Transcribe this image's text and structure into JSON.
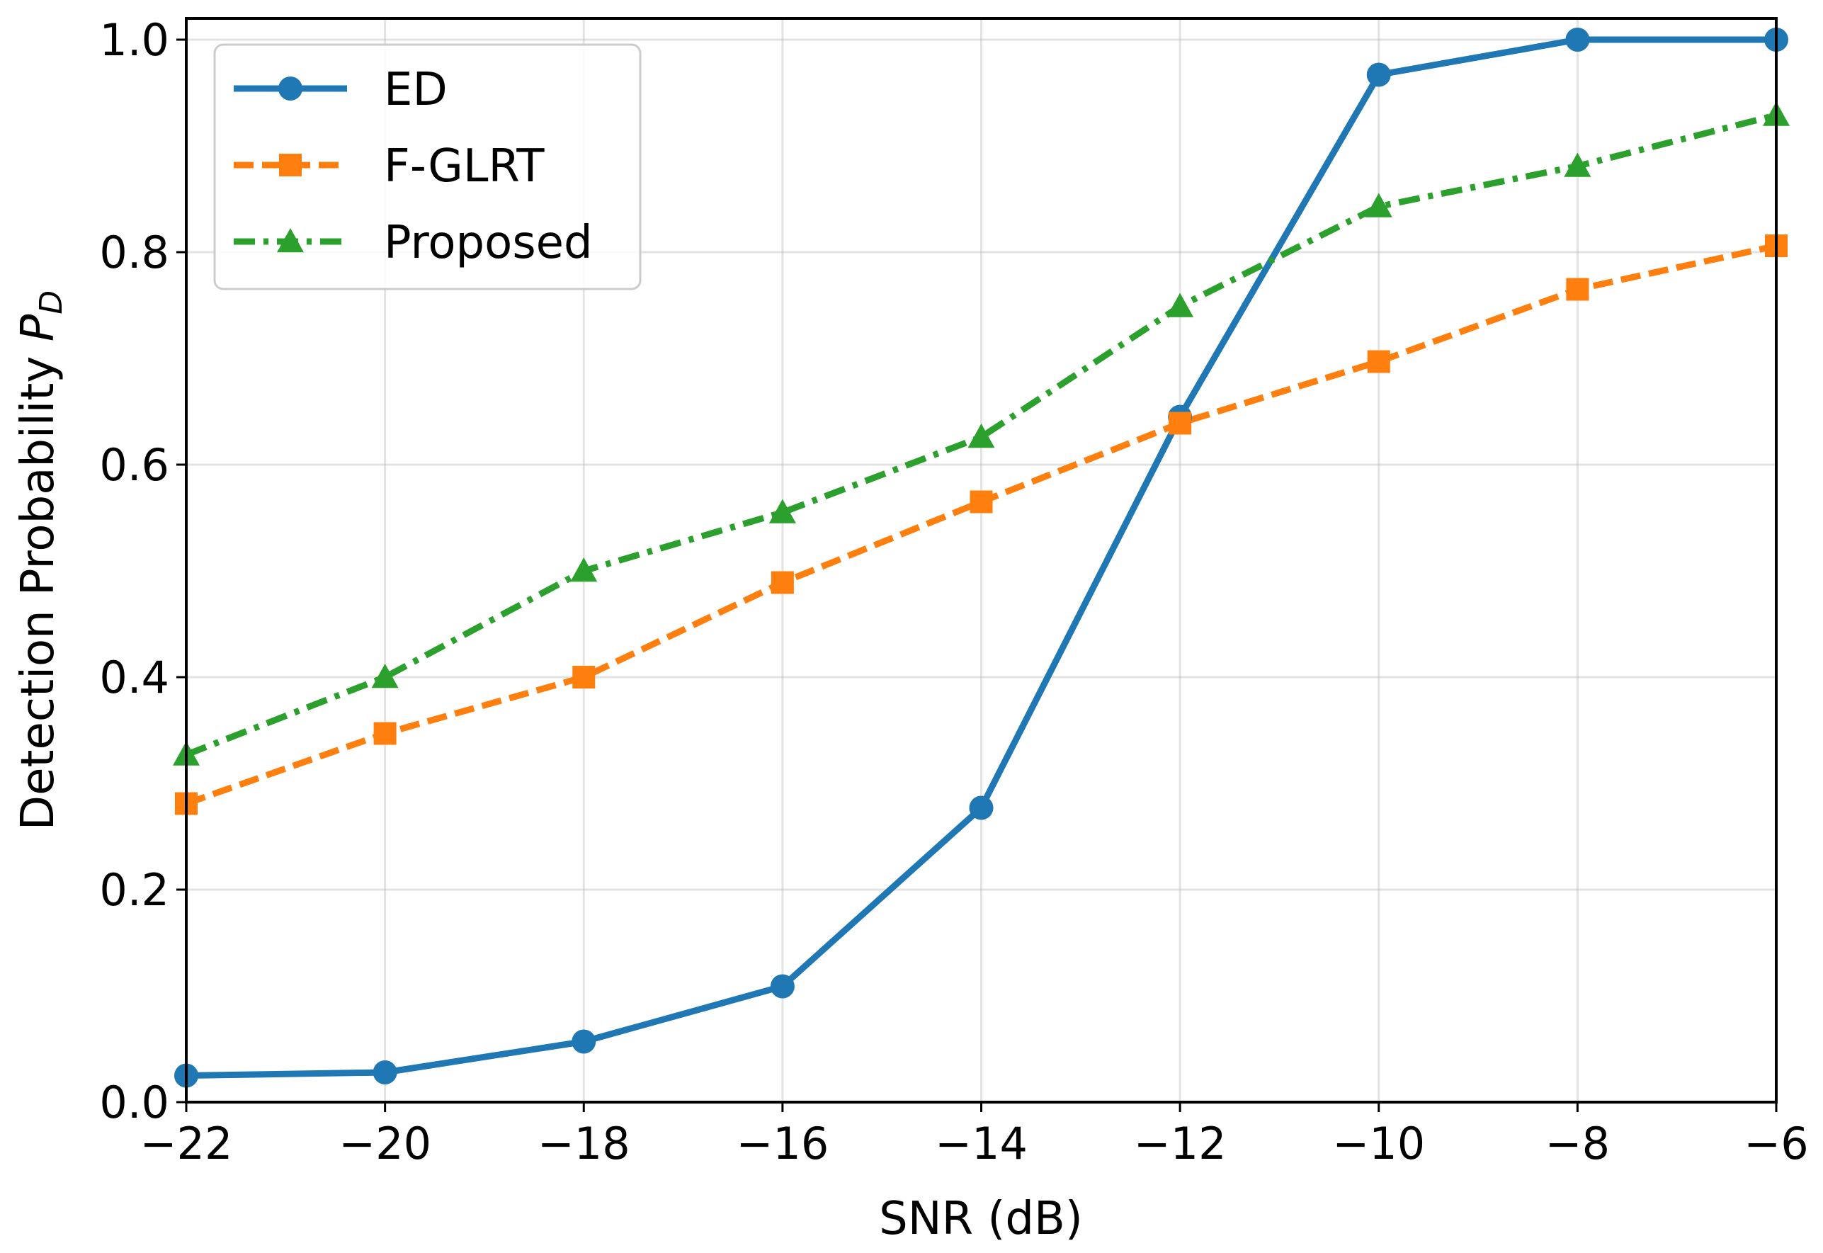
{
  "chart_data": {
    "type": "line",
    "title": "",
    "xlabel": "SNR (dB)",
    "ylabel": "Detection Probability",
    "ylabel_symbol": "P",
    "ylabel_subscript": "D",
    "x": [
      -22,
      -20,
      -18,
      -16,
      -14,
      -12,
      -10,
      -8,
      -6
    ],
    "xlim": [
      -22,
      -6
    ],
    "ylim": [
      0.0,
      1.02
    ],
    "xticks": [
      -22,
      -20,
      -18,
      -16,
      -14,
      -12,
      -10,
      -8,
      -6
    ],
    "xtick_labels": [
      "−22",
      "−20",
      "−18",
      "−16",
      "−14",
      "−12",
      "−10",
      "−8",
      "−6"
    ],
    "yticks": [
      0.0,
      0.2,
      0.4,
      0.6,
      0.8,
      1.0
    ],
    "ytick_labels": [
      "0.0",
      "0.2",
      "0.4",
      "0.6",
      "0.8",
      "1.0"
    ],
    "grid": true,
    "legend_position": "top-left",
    "series": [
      {
        "name": "ED",
        "color": "#1f77b4",
        "line_style": "solid",
        "marker": "circle",
        "values": [
          0.025,
          0.028,
          0.057,
          0.109,
          0.277,
          0.645,
          0.967,
          1.0,
          1.0
        ]
      },
      {
        "name": "F-GLRT",
        "color": "#ff7f0e",
        "line_style": "dashed",
        "marker": "square",
        "values": [
          0.281,
          0.347,
          0.4,
          0.489,
          0.565,
          0.639,
          0.697,
          0.765,
          0.806
        ]
      },
      {
        "name": "Proposed",
        "color": "#2ca02c",
        "line_style": "dash-dot",
        "marker": "triangle",
        "values": [
          0.327,
          0.4,
          0.5,
          0.555,
          0.626,
          0.749,
          0.843,
          0.881,
          0.929
        ]
      }
    ]
  }
}
